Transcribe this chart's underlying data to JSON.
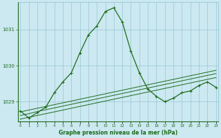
{
  "x": [
    0,
    1,
    2,
    3,
    4,
    5,
    6,
    7,
    8,
    9,
    10,
    11,
    12,
    13,
    14,
    15,
    16,
    17,
    18,
    19,
    20,
    21,
    22,
    23
  ],
  "y_main": [
    1028.75,
    1028.55,
    1028.7,
    1028.85,
    1029.25,
    1029.55,
    1029.8,
    1030.35,
    1030.85,
    1031.1,
    1031.5,
    1031.6,
    1031.2,
    1030.4,
    1029.8,
    1029.35,
    1029.15,
    1029.0,
    1029.1,
    1029.25,
    1029.3,
    1029.45,
    1029.55,
    1029.4
  ],
  "y_line1": [
    1028.72,
    1028.77,
    1028.82,
    1028.87,
    1028.92,
    1028.97,
    1029.02,
    1029.07,
    1029.12,
    1029.17,
    1029.22,
    1029.27,
    1029.32,
    1029.37,
    1029.42,
    1029.47,
    1029.52,
    1029.57,
    1029.62,
    1029.67,
    1029.72,
    1029.77,
    1029.82,
    1029.87
  ],
  "y_line2": [
    1028.62,
    1028.67,
    1028.73,
    1028.78,
    1028.83,
    1028.88,
    1028.93,
    1028.98,
    1029.03,
    1029.08,
    1029.13,
    1029.18,
    1029.23,
    1029.28,
    1029.33,
    1029.38,
    1029.43,
    1029.48,
    1029.53,
    1029.58,
    1029.63,
    1029.68,
    1029.73,
    1029.78
  ],
  "y_line3": [
    1028.52,
    1028.57,
    1028.62,
    1028.67,
    1028.72,
    1028.77,
    1028.82,
    1028.87,
    1028.92,
    1028.97,
    1029.02,
    1029.07,
    1029.12,
    1029.17,
    1029.22,
    1029.27,
    1029.32,
    1029.37,
    1029.42,
    1029.47,
    1029.52,
    1029.57,
    1029.62,
    1029.67
  ],
  "line_color": "#1a6b1a",
  "bg_color": "#cce8f0",
  "grid_color": "#8abfcf",
  "text_color": "#1a6b1a",
  "ylim": [
    1028.45,
    1031.75
  ],
  "yticks": [
    1029,
    1030,
    1031
  ],
  "xlabel": "Graphe pression niveau de la mer (hPa)",
  "figsize": [
    3.2,
    2.0
  ],
  "dpi": 100
}
